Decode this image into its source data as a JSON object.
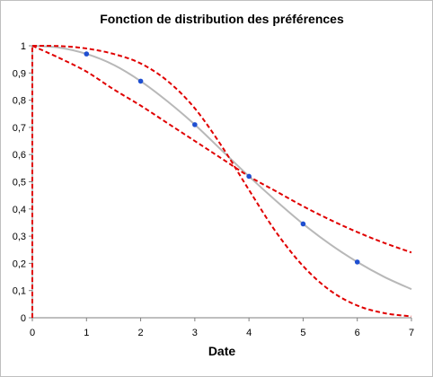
{
  "chart_data": {
    "type": "scatter",
    "title": "Fonction de distribution des préférences",
    "xlabel": "Date",
    "ylabel": "",
    "xlim": [
      0,
      7
    ],
    "ylim": [
      0,
      1
    ],
    "x_ticks": [
      "0",
      "1",
      "2",
      "3",
      "4",
      "5",
      "6",
      "7"
    ],
    "y_ticks": [
      "0",
      "0,1",
      "0,2",
      "0,3",
      "0,4",
      "0,5",
      "0,6",
      "0,7",
      "0,8",
      "0,9",
      "1"
    ],
    "grid": false,
    "legend": "none",
    "series": [
      {
        "style": "points",
        "color": "#1f4fd1",
        "x": [
          1,
          2,
          3,
          4,
          5,
          6
        ],
        "y": [
          0.97,
          0.87,
          0.71,
          0.52,
          0.345,
          0.205
        ]
      },
      {
        "style": "solid-line",
        "color": "#b8b8b8",
        "x": [
          0,
          0.5,
          1,
          1.5,
          2,
          2.5,
          3,
          3.5,
          4,
          4.5,
          5,
          5.5,
          6,
          6.5,
          7
        ],
        "y": [
          1,
          0.993,
          0.97,
          0.93,
          0.87,
          0.795,
          0.71,
          0.615,
          0.52,
          0.43,
          0.345,
          0.27,
          0.205,
          0.15,
          0.105
        ]
      },
      {
        "style": "dashed-line",
        "color": "#e00000",
        "x": [
          0,
          0.5,
          1,
          1.5,
          2,
          2.5,
          3,
          3.5,
          4,
          4.5,
          5,
          5.5,
          6,
          6.5,
          7
        ],
        "y": [
          1,
          0.999,
          0.99,
          0.97,
          0.935,
          0.87,
          0.77,
          0.63,
          0.47,
          0.315,
          0.19,
          0.1,
          0.045,
          0.017,
          0.005
        ]
      },
      {
        "style": "dashed-line",
        "color": "#e00000",
        "x": [
          0,
          0.5,
          1,
          1.5,
          2,
          2.5,
          3,
          3.5,
          4,
          4.5,
          5,
          5.5,
          6,
          6.5,
          7
        ],
        "y": [
          1,
          0.955,
          0.905,
          0.84,
          0.78,
          0.715,
          0.65,
          0.585,
          0.52,
          0.465,
          0.41,
          0.36,
          0.315,
          0.275,
          0.24
        ]
      },
      {
        "style": "dashed-line",
        "color": "#e00000",
        "x": [
          0,
          0
        ],
        "y": [
          0,
          1
        ]
      }
    ]
  }
}
